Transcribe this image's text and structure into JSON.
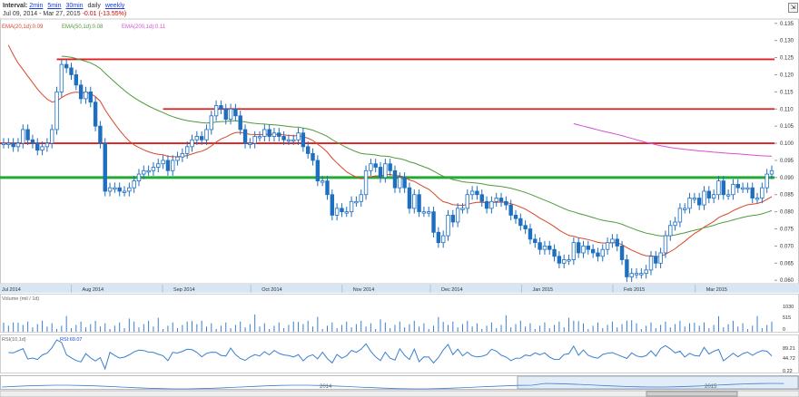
{
  "header": {
    "interval_label": "Interval:",
    "intervals": [
      "2min",
      "5min",
      "30min",
      "daily",
      "weekly"
    ],
    "active_interval": "daily",
    "date_range": "Jul 09, 2014 - Mar 27, 2015",
    "change": "-0.01 (-13.55%)",
    "expand_glyph": "⇲"
  },
  "legend": {
    "ema20": "EMA(20,1d):0.09",
    "ema50": "EMA(50,1d):0.08",
    "ema200": "EMA(200,1d):0.11",
    "volume": "Volume (mil / 1d)",
    "rsi": "RSI(10,1d)",
    "rsi_value": "RSI:69.07"
  },
  "colors": {
    "candle": "#1e6fc0",
    "ema20": "#d9472b",
    "ema50": "#4e9a3a",
    "ema200": "#d64fd6",
    "resistance": "#e02020",
    "support": "#22aa33",
    "volume": "#3a7fd0",
    "rsi": "#3a7fd0",
    "axis_band": "#d7e6f5"
  },
  "chart_data": {
    "type": "candlestick",
    "price_axis": {
      "ticks": [
        "0.135",
        "0.130",
        "0.125",
        "0.120",
        "0.115",
        "0.110",
        "0.105",
        "0.100",
        "0.095",
        "0.090",
        "0.085",
        "0.080",
        "0.075",
        "0.070",
        "0.065",
        "0.060"
      ],
      "ylim": [
        0.059,
        0.136
      ]
    },
    "months": [
      "Jul 2014",
      "Aug 2014",
      "Sep 2014",
      "Oct 2014",
      "Nov 2014",
      "Dec 2014",
      "Jan 2015",
      "Feb 2015",
      "Mar 2015"
    ],
    "month_dates": [
      "2014-07-01",
      "2014-08-01",
      "2014-09-01",
      "2014-10-01",
      "2014-11-01",
      "2014-12-01",
      "2015-01-01",
      "2015-02-01",
      "2015-03-01"
    ],
    "close": [
      0.1,
      0.1,
      0.099,
      0.1,
      0.104,
      0.101,
      0.1,
      0.098,
      0.099,
      0.1,
      0.104,
      0.115,
      0.123,
      0.122,
      0.12,
      0.117,
      0.113,
      0.115,
      0.112,
      0.105,
      0.1,
      0.086,
      0.087,
      0.087,
      0.086,
      0.086,
      0.087,
      0.089,
      0.091,
      0.092,
      0.092,
      0.093,
      0.094,
      0.095,
      0.092,
      0.095,
      0.096,
      0.097,
      0.099,
      0.101,
      0.102,
      0.101,
      0.104,
      0.108,
      0.111,
      0.11,
      0.107,
      0.11,
      0.108,
      0.104,
      0.1,
      0.1,
      0.102,
      0.102,
      0.104,
      0.102,
      0.103,
      0.102,
      0.101,
      0.101,
      0.101,
      0.103,
      0.099,
      0.097,
      0.095,
      0.089,
      0.089,
      0.085,
      0.079,
      0.081,
      0.08,
      0.08,
      0.083,
      0.083,
      0.085,
      0.092,
      0.094,
      0.093,
      0.09,
      0.094,
      0.092,
      0.087,
      0.09,
      0.087,
      0.081,
      0.085,
      0.08,
      0.08,
      0.08,
      0.074,
      0.071,
      0.073,
      0.079,
      0.077,
      0.081,
      0.081,
      0.085,
      0.086,
      0.085,
      0.083,
      0.081,
      0.083,
      0.084,
      0.083,
      0.082,
      0.079,
      0.078,
      0.076,
      0.075,
      0.072,
      0.071,
      0.069,
      0.07,
      0.069,
      0.067,
      0.065,
      0.066,
      0.066,
      0.071,
      0.068,
      0.07,
      0.069,
      0.068,
      0.067,
      0.069,
      0.071,
      0.072,
      0.07,
      0.066,
      0.061,
      0.062,
      0.062,
      0.062,
      0.063,
      0.067,
      0.065,
      0.068,
      0.073,
      0.076,
      0.077,
      0.081,
      0.081,
      0.084,
      0.084,
      0.082,
      0.086,
      0.084,
      0.085,
      0.089,
      0.085,
      0.085,
      0.088,
      0.087,
      0.087,
      0.087,
      0.084,
      0.084,
      0.087,
      0.091,
      0.092
    ],
    "hline_levels": [
      0.1245,
      0.11,
      0.1,
      0.09
    ],
    "ema20_last": 0.09,
    "ema50_last": 0.08,
    "ema200_last": 0.11,
    "volume_axis": {
      "ticks": [
        "1030",
        "515",
        "0"
      ]
    },
    "rsi_axis": {
      "ticks": [
        "89.21",
        "44.72",
        "0.22"
      ]
    },
    "rsi_last": 69.07,
    "navigator": {
      "labels": [
        "2014",
        "2015"
      ]
    }
  }
}
